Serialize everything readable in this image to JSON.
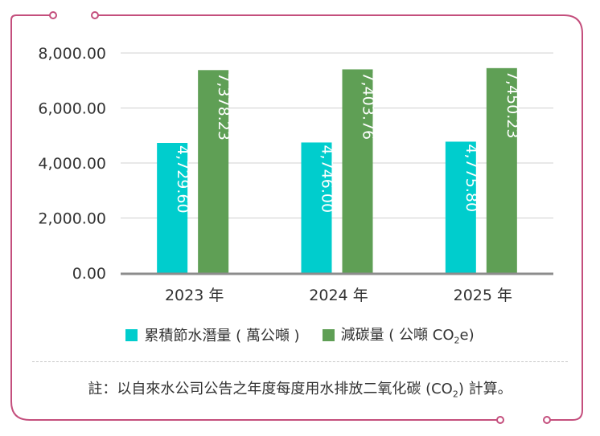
{
  "colors": {
    "frame": "#c44f7d",
    "series_a": "#00cdcd",
    "series_b": "#5f9f55",
    "grid": "#d0d0d0",
    "axis": "#8c8c8c"
  },
  "legend": {
    "items": [
      {
        "label": "累積節水潛量 ( 萬公噸 )",
        "color": "#00cdcd"
      },
      {
        "label_pre": "減碳量 ( 公噸 CO",
        "label_sub": "2",
        "label_post": "e)",
        "color": "#5f9f55"
      }
    ]
  },
  "note": {
    "pre": "註：以自來水公司公告之年度每度用水排放二氧化碳 (CO",
    "sub": "2",
    "post": ") 計算。"
  },
  "chart_data": {
    "type": "bar",
    "categories": [
      "2023 年",
      "2024 年",
      "2025 年"
    ],
    "series": [
      {
        "name": "累積節水潛量 ( 萬公噸 )",
        "values": [
          4729.6,
          4746.0,
          4775.8
        ],
        "labels": [
          "4,729.60",
          "4,746.00",
          "4,775.80"
        ]
      },
      {
        "name": "減碳量 ( 公噸 CO2e)",
        "values": [
          7378.23,
          7403.76,
          7450.23
        ],
        "labels": [
          "7,378.23",
          "7,403.76",
          "7,450.23"
        ]
      }
    ],
    "ylim": [
      0,
      8000
    ],
    "yticks": [
      0,
      2000,
      4000,
      6000,
      8000
    ],
    "ytick_labels": [
      "0.00",
      "2,000.00",
      "4,000.00",
      "6,000.00",
      "8,000.00"
    ],
    "grid": true,
    "legend_position": "bottom",
    "data_labels": "inside, rotated vertical"
  }
}
